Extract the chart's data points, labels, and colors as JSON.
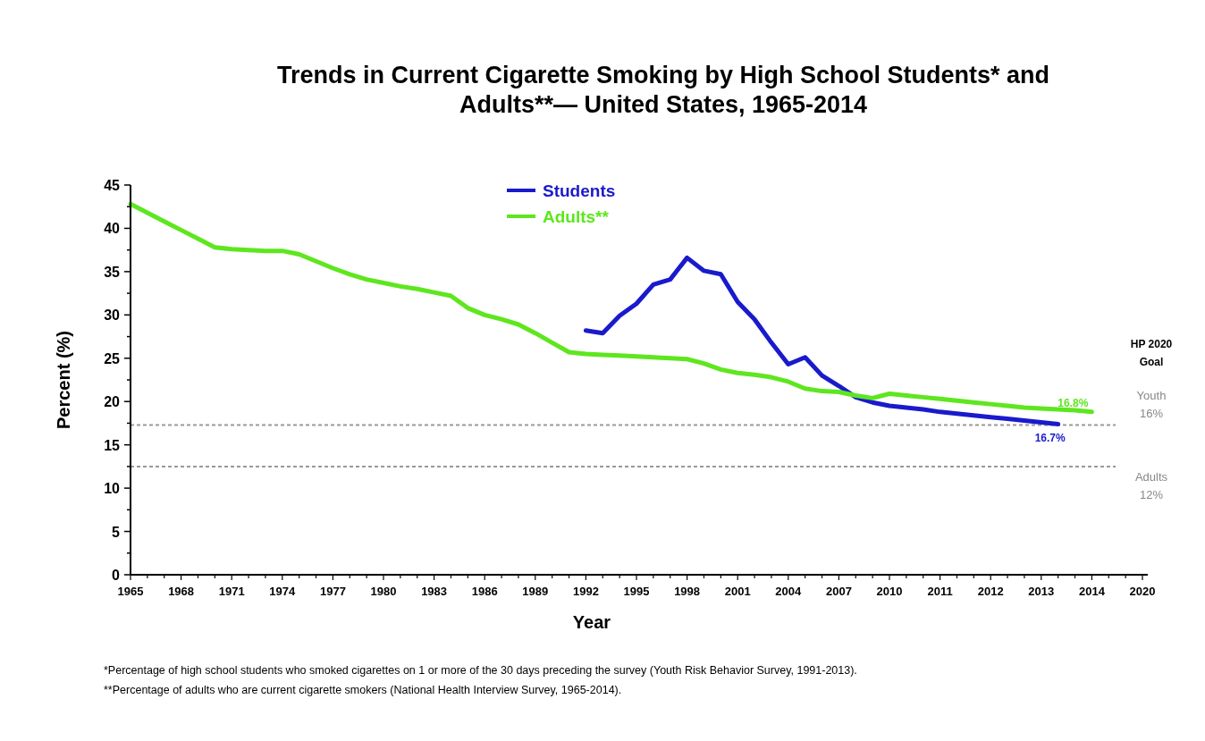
{
  "chart_data": {
    "type": "line",
    "title": "Trends in Current Cigarette Smoking by High School Students* and Adults**— United States, 1965-2014",
    "xlabel": "Year",
    "ylabel": "Percent (%)",
    "categories": [
      "1965",
      null,
      null,
      "1968",
      null,
      null,
      "1971",
      null,
      null,
      "1974",
      null,
      null,
      "1977",
      null,
      null,
      "1980",
      null,
      null,
      "1983",
      null,
      null,
      "1986",
      null,
      null,
      "1989",
      null,
      null,
      "1992",
      null,
      null,
      "1995",
      null,
      null,
      "1998",
      null,
      null,
      "2001",
      null,
      null,
      "2004",
      null,
      null,
      "2007",
      null,
      null,
      "2010",
      null,
      null,
      "2011",
      null,
      null,
      "2012",
      null,
      null,
      "2013",
      null,
      null,
      "2014",
      null,
      null,
      "2020"
    ],
    "ylim": [
      0,
      45
    ],
    "yticks": [
      0,
      {
        "value": 2.5,
        "label": null
      },
      5,
      {
        "value": 7.5,
        "label": null
      },
      10,
      {
        "value": 12.5,
        "label": null
      },
      15,
      {
        "value": 17.5,
        "label": null
      },
      20,
      {
        "value": 22.5,
        "label": null
      },
      25,
      {
        "value": 27.5,
        "label": null
      },
      30,
      {
        "value": 32.5,
        "label": null
      },
      35,
      {
        "value": 37.5,
        "label": null
      },
      40,
      {
        "value": 42.5,
        "label": null
      },
      45
    ],
    "series": [
      {
        "name": "Students",
        "color": "#1a1acc",
        "values": [
          null,
          null,
          null,
          null,
          null,
          null,
          null,
          null,
          null,
          null,
          null,
          null,
          null,
          null,
          null,
          null,
          null,
          null,
          null,
          null,
          null,
          null,
          null,
          null,
          null,
          null,
          null,
          28.2,
          27.9,
          29.9,
          31.3,
          33.5,
          34.1,
          36.6,
          35.1,
          34.7,
          31.5,
          29.5,
          26.8,
          24.3,
          25.1,
          23.0,
          21.8,
          20.5,
          19.9,
          19.5,
          19.3,
          19.1,
          18.8,
          18.6,
          18.4,
          18.2,
          18.0,
          17.8,
          17.6,
          17.4,
          null,
          null,
          null,
          null,
          null
        ]
      },
      {
        "name": "Adults**",
        "color": "#5ee61e",
        "values": [
          42.8,
          41.8,
          40.8,
          39.8,
          38.8,
          37.8,
          37.6,
          37.5,
          37.4,
          37.4,
          37.0,
          36.2,
          35.4,
          34.7,
          34.1,
          33.7,
          33.3,
          33.0,
          32.6,
          32.2,
          30.8,
          30.0,
          29.5,
          28.9,
          27.9,
          26.8,
          25.7,
          25.5,
          25.4,
          25.3,
          25.2,
          25.1,
          25.0,
          24.9,
          24.4,
          23.7,
          23.3,
          23.1,
          22.8,
          22.3,
          21.5,
          21.2,
          21.1,
          20.7,
          20.4,
          20.9,
          20.7,
          20.5,
          20.3,
          20.1,
          19.9,
          19.7,
          19.5,
          19.3,
          19.2,
          19.1,
          19.0,
          18.8,
          null,
          null,
          null
        ]
      }
    ],
    "ref_lines": [
      {
        "axis": "y",
        "value": 17.3,
        "label": "Youth 16%",
        "color": "#999999",
        "line_style": "dashed"
      },
      {
        "axis": "y",
        "value": 12.5,
        "label": "Adults 12%",
        "color": "#999999",
        "line_style": "dashed"
      }
    ],
    "legend": "top",
    "grid": false,
    "line_style": "solid",
    "marker": "none",
    "annotations": [
      "HP 2020 Goal",
      "16.8%",
      "16.7%",
      "*Percentage of high school students who smoked cigarettes on 1 or more of the 30 days preceding the survey (Youth Risk Behavior Survey, 1991-2013).",
      "**Percentage of adults who are current cigarette smokers (National Health Interview Survey, 1965-2014)."
    ]
  }
}
